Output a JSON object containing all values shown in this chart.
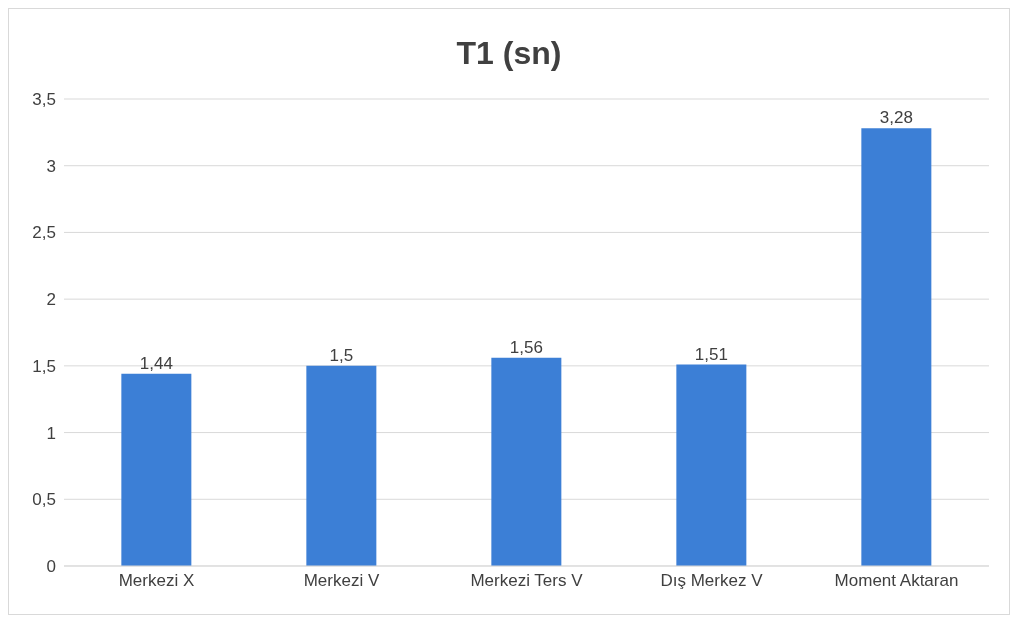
{
  "chart_data": {
    "type": "bar",
    "title": "T1 (sn)",
    "categories": [
      "Merkezi X",
      "Merkezi V",
      "Merkezi Ters V",
      "Dış Merkez V",
      "Moment Aktaran"
    ],
    "values": [
      1.44,
      1.5,
      1.56,
      1.51,
      3.28
    ],
    "value_labels": [
      "1,44",
      "1,5",
      "1,56",
      "1,51",
      "3,28"
    ],
    "color": "#3c7fd6",
    "ylim": [
      0,
      3.5
    ],
    "yticks": [
      0,
      {
        "value": 0.5,
        "label": "0,5"
      },
      1,
      {
        "value": 1.5,
        "label": "1,5"
      },
      2,
      {
        "value": 2.5,
        "label": "2,5"
      },
      3,
      {
        "value": 3.5,
        "label": "3,5"
      }
    ],
    "grid": "y"
  }
}
